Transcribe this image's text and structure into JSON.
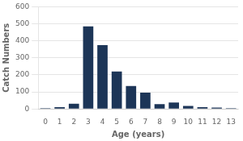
{
  "chart_data": {
    "type": "bar",
    "categories": [
      "0",
      "1",
      "2",
      "3",
      "4",
      "5",
      "6",
      "7",
      "8",
      "9",
      "10",
      "11",
      "12",
      "13"
    ],
    "values": [
      5,
      10,
      30,
      485,
      375,
      220,
      135,
      95,
      28,
      38,
      18,
      10,
      8,
      5
    ],
    "color": "#1C3557",
    "xlabel": "Age (years)",
    "ylabel": "Catch Numbers",
    "ylim": [
      0,
      600
    ],
    "yticks": [
      0,
      100,
      200,
      300,
      400,
      500,
      600
    ],
    "grid": true
  }
}
